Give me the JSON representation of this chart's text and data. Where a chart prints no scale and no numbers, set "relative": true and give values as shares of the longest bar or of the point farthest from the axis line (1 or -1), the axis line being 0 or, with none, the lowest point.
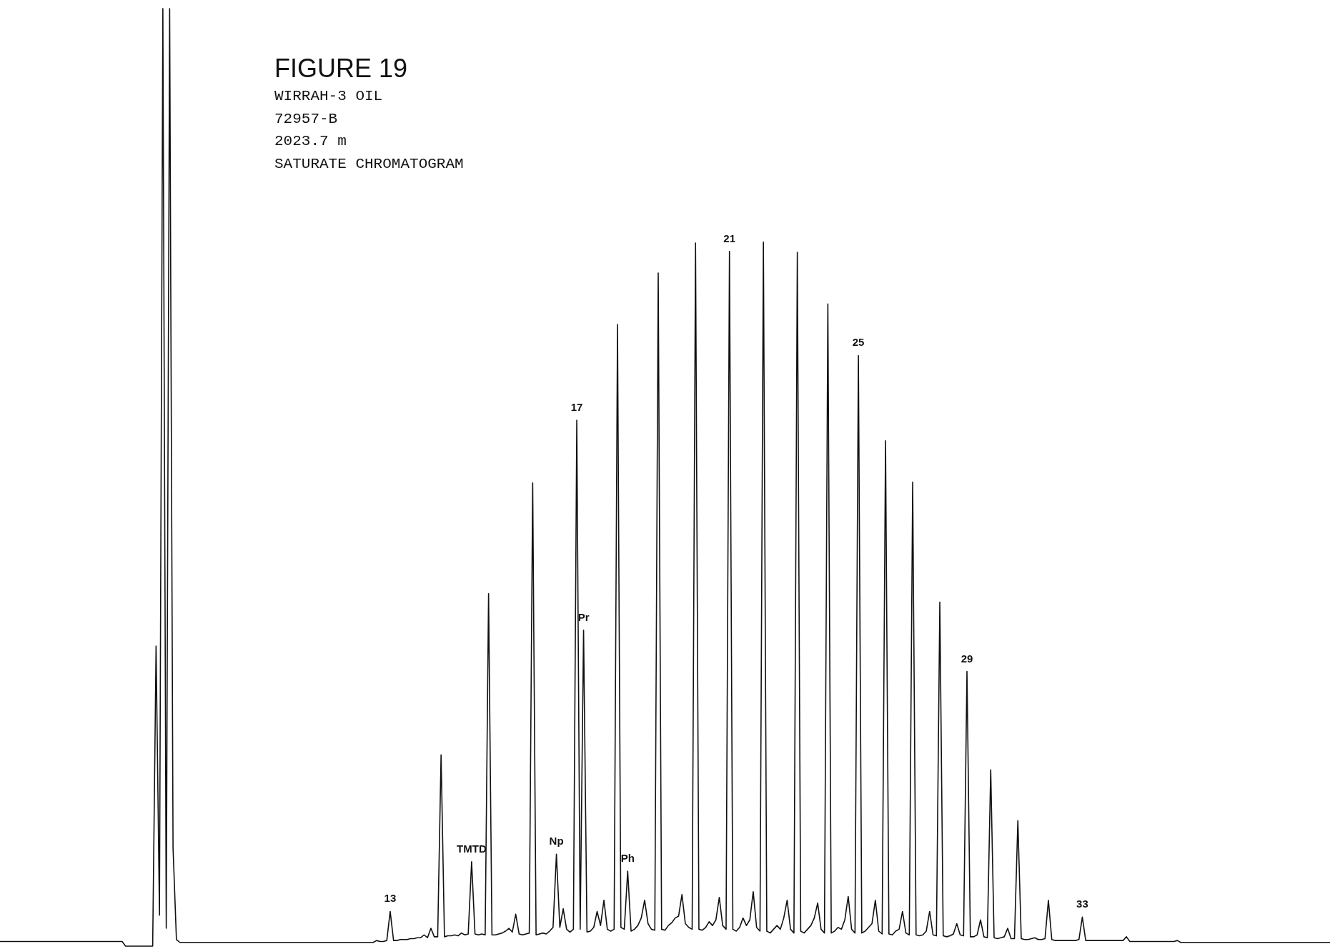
{
  "chart_data": {
    "type": "line",
    "relative": true,
    "title": "FIGURE 19",
    "subtitle": "WIRRAH-3 OIL\n72957-B\n2023.7 m\nSATURATE CHROMATOGRAM",
    "categories": [
      null,
      null,
      null,
      null,
      null,
      null,
      null,
      null,
      null,
      null,
      null,
      null,
      null,
      null,
      null,
      null,
      null,
      null,
      null,
      null,
      null,
      null,
      null,
      null,
      null,
      null,
      null,
      null,
      null,
      null,
      null,
      null,
      null,
      null,
      null,
      null,
      null,
      null,
      null,
      null,
      null,
      null,
      null,
      null,
      null,
      null,
      null,
      null,
      null,
      null,
      null,
      null,
      null,
      null,
      null,
      null,
      null,
      null,
      null,
      null,
      null,
      null,
      null,
      null,
      null,
      null,
      null,
      null,
      null,
      null,
      null,
      null,
      null,
      null,
      null,
      null,
      null,
      null,
      null,
      null,
      null,
      null,
      null,
      null,
      null,
      null,
      null,
      null,
      null,
      null,
      null,
      null,
      null,
      null,
      null,
      null,
      null,
      null,
      null,
      null,
      null,
      null,
      null,
      null,
      null,
      null,
      null,
      null,
      null,
      null,
      null,
      null,
      null,
      null,
      null,
      null,
      null,
      null,
      null,
      null,
      null,
      null,
      null,
      null,
      null,
      null,
      null,
      null,
      null,
      null,
      null,
      null,
      null,
      null,
      null,
      null,
      null,
      null,
      null,
      null,
      null,
      null,
      null,
      null,
      null,
      null,
      null,
      null,
      null,
      null,
      null,
      null,
      null,
      null,
      null,
      null,
      null,
      null,
      null,
      null,
      null,
      null,
      null,
      null,
      null,
      null,
      null,
      null,
      null,
      null,
      null,
      null,
      null,
      null,
      null,
      null,
      null,
      null,
      null,
      null,
      null,
      null,
      null,
      null,
      null,
      null,
      null,
      null,
      null,
      null,
      null,
      null,
      null,
      null,
      null,
      null,
      null,
      null,
      null,
      null,
      null,
      null,
      null,
      null,
      null,
      null,
      null,
      null,
      null,
      null,
      null,
      null,
      null,
      null,
      null,
      null,
      null,
      null,
      null,
      null,
      null,
      null,
      null,
      null,
      null,
      null,
      null,
      null,
      null,
      null,
      null,
      null,
      null,
      null,
      null,
      null,
      null,
      null,
      null,
      null,
      null,
      null,
      null,
      null,
      null,
      null,
      null,
      null,
      null,
      null,
      null,
      null,
      null,
      null,
      null,
      null,
      null,
      null,
      null,
      null,
      null,
      null,
      null,
      null,
      null,
      null,
      null,
      null,
      null,
      null,
      null,
      null,
      null,
      null,
      null,
      null,
      null,
      null,
      null,
      null,
      null,
      null,
      null,
      null,
      null,
      null,
      null,
      null,
      null,
      null,
      null,
      null,
      null,
      null,
      null,
      null,
      null,
      null,
      null,
      null,
      null,
      null,
      null,
      null,
      null,
      null,
      null,
      null,
      null,
      null,
      null,
      null,
      null,
      null,
      null,
      null,
      null,
      null,
      null,
      null,
      null,
      null,
      null,
      null,
      null,
      null,
      null,
      null,
      null,
      null,
      null,
      null,
      null,
      null,
      null,
      null,
      null,
      null,
      null,
      null,
      null,
      null,
      null,
      null,
      null,
      null,
      null,
      null,
      null,
      null,
      null,
      null,
      null,
      null,
      null,
      null,
      null,
      null,
      null,
      null,
      null,
      null,
      null,
      null,
      null,
      null,
      null,
      null,
      null,
      null,
      null,
      null,
      null,
      null,
      null,
      null,
      null,
      null,
      null,
      null,
      null,
      null,
      null,
      null,
      null,
      null,
      null,
      null,
      null,
      null,
      null,
      null,
      null
    ],
    "series": [
      {
        "color": "#111111",
        "values": [
          0.005,
          0.005,
          0.005,
          0.005,
          0.005,
          0.005,
          0.005,
          0.005,
          0.005,
          0.005,
          0.005,
          0.005,
          0.005,
          0.005,
          0.005,
          0.005,
          0.005,
          0.005,
          0.005,
          0.005,
          0.005,
          0.005,
          0.005,
          0.005,
          0.005,
          0.005,
          0.005,
          0.005,
          0.005,
          0.005,
          0.005,
          0.005,
          0.005,
          0.005,
          0.005,
          0.005,
          0.005,
          0,
          0,
          0,
          0,
          0,
          0,
          0,
          0,
          0,
          0.32,
          0.033,
          1,
          0.019,
          1,
          0.105,
          0.007,
          0.004,
          0.004,
          0.004,
          0.004,
          0.004,
          0.004,
          0.004,
          0.004,
          0.004,
          0.004,
          0.004,
          0.004,
          0.004,
          0.004,
          0.004,
          0.004,
          0.004,
          0.004,
          0.004,
          0.004,
          0.004,
          0.004,
          0.004,
          0.004,
          0.004,
          0.004,
          0.004,
          0.004,
          0.004,
          0.004,
          0.004,
          0.004,
          0.004,
          0.004,
          0.004,
          0.004,
          0.004,
          0.004,
          0.004,
          0.004,
          0.004,
          0.004,
          0.004,
          0.004,
          0.004,
          0.004,
          0.004,
          0.004,
          0.004,
          0.004,
          0.004,
          0.004,
          0.004,
          0.004,
          0.004,
          0.004,
          0.004,
          0.004,
          0.006,
          0.005,
          0.005,
          0.006,
          0.037,
          0.006,
          0.006,
          0.007,
          0.007,
          0.007,
          0.008,
          0.008,
          0.009,
          0.009,
          0.012,
          0.009,
          0.019,
          0.01,
          0.01,
          0.204,
          0.01,
          0.011,
          0.011,
          0.012,
          0.011,
          0.014,
          0.012,
          0.013,
          0.09,
          0.013,
          0.012,
          0.013,
          0.012,
          0.376,
          0.012,
          0.012,
          0.013,
          0.014,
          0.016,
          0.019,
          0.015,
          0.034,
          0.013,
          0.012,
          0.013,
          0.014,
          0.494,
          0.012,
          0.013,
          0.014,
          0.013,
          0.016,
          0.02,
          0.098,
          0.02,
          0.04,
          0.018,
          0.015,
          0.018,
          0.561,
          0.018,
          0.337,
          0.015,
          0.016,
          0.02,
          0.037,
          0.022,
          0.049,
          0.018,
          0.016,
          0.018,
          0.663,
          0.02,
          0.018,
          0.08,
          0.016,
          0.018,
          0.022,
          0.03,
          0.049,
          0.024,
          0.018,
          0.017,
          0.718,
          0.018,
          0.017,
          0.022,
          0.025,
          0.03,
          0.032,
          0.055,
          0.024,
          0.02,
          0.018,
          0.75,
          0.018,
          0.017,
          0.02,
          0.026,
          0.022,
          0.028,
          0.052,
          0.022,
          0.018,
          0.741,
          0.018,
          0.016,
          0.02,
          0.03,
          0.022,
          0.028,
          0.058,
          0.02,
          0.016,
          0.751,
          0.016,
          0.014,
          0.018,
          0.022,
          0.018,
          0.03,
          0.049,
          0.018,
          0.014,
          0.74,
          0.016,
          0.014,
          0.018,
          0.022,
          0.03,
          0.046,
          0.018,
          0.014,
          0.685,
          0.014,
          0.016,
          0.02,
          0.018,
          0.028,
          0.053,
          0.018,
          0.014,
          0.63,
          0.014,
          0.016,
          0.02,
          0.024,
          0.049,
          0.016,
          0.013,
          0.539,
          0.013,
          0.012,
          0.016,
          0.018,
          0.037,
          0.014,
          0.012,
          0.495,
          0.012,
          0.011,
          0.012,
          0.016,
          0.037,
          0.012,
          0.011,
          0.367,
          0.011,
          0.01,
          0.011,
          0.013,
          0.024,
          0.012,
          0.011,
          0.293,
          0.01,
          0.01,
          0.012,
          0.028,
          0.01,
          0.009,
          0.188,
          0.009,
          0.008,
          0.009,
          0.01,
          0.019,
          0.008,
          0.008,
          0.134,
          0.008,
          0.007,
          0.007,
          0.008,
          0.009,
          0.007,
          0.007,
          0.008,
          0.049,
          0.007,
          0.006,
          0.006,
          0.006,
          0.006,
          0.006,
          0.006,
          0.006,
          0.007,
          0.031,
          0.006,
          0.006,
          0.006,
          0.006,
          0.006,
          0.006,
          0.006,
          0.006,
          0.006,
          0.006,
          0.006,
          0.006,
          0.01,
          0.005,
          0.005,
          0.005,
          0.005,
          0.005,
          0.005,
          0.005,
          0.005,
          0.005,
          0.005,
          0.005,
          0.005,
          0.005,
          0.005,
          0.006,
          0.004,
          0.004,
          0.004,
          0.004,
          0.004,
          0.004,
          0.004,
          0.004,
          0.004,
          0.004,
          0.004,
          0.004,
          0.004,
          0.004,
          0.004,
          0.004,
          0.004,
          0.004,
          0.004,
          0.004,
          0.004,
          0.004,
          0.004,
          0.004,
          0.004,
          0.004,
          0.004,
          0.004,
          0.004,
          0.004,
          0.004,
          0.004,
          0.004,
          0.004,
          0.004,
          0.004,
          0.004,
          0.004,
          0.004,
          0.004,
          0.004,
          0.004,
          0.004,
          0.004,
          0.004
        ]
      }
    ],
    "annotations": [
      {
        "text": "13",
        "y": 0.037
      },
      {
        "text": "TMTD",
        "y": 0.09
      },
      {
        "text": "Np",
        "y": 0.098
      },
      {
        "text": "17",
        "y": 0.561
      },
      {
        "text": "Pr",
        "y": 0.337
      },
      {
        "text": "Ph",
        "y": 0.08
      },
      {
        "text": "21",
        "y": 0.741
      },
      {
        "text": "25",
        "y": 0.63
      },
      {
        "text": "29",
        "y": 0.293
      },
      {
        "text": "33",
        "y": 0.031
      }
    ]
  }
}
